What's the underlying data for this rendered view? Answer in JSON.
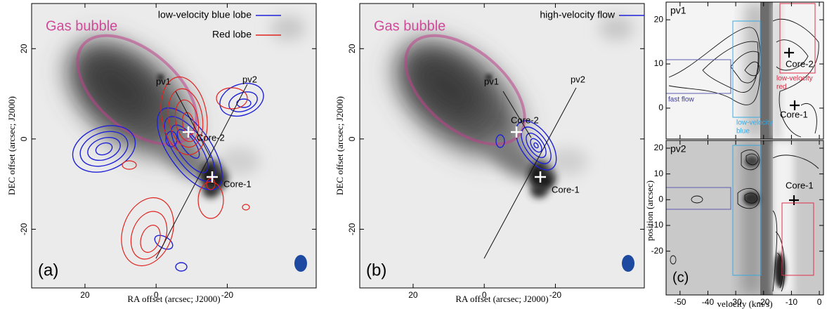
{
  "chart_data": [
    {
      "type": "image",
      "panel_label": "(a)",
      "annotations": [
        "Gas bubble",
        "pv1",
        "pv2",
        "Core-2",
        "Core-1"
      ],
      "series": [
        {
          "name": "low-velocity blue lobe",
          "color": "#1f22d6"
        },
        {
          "name": "Red lobe",
          "color": "#e0241f"
        }
      ],
      "xlabel": "RA offset (arcsec; J2000)",
      "ylabel": "DEC offset (arcsec; J2000)",
      "xlim": [
        35,
        -45
      ],
      "ylim": [
        -33,
        30
      ],
      "xticks": [
        20,
        0,
        -20
      ],
      "yticks": [
        -20,
        0,
        20
      ]
    },
    {
      "type": "image",
      "panel_label": "(b)",
      "annotations": [
        "Gas bubble",
        "pv1",
        "pv2",
        "Core-2",
        "Core-1"
      ],
      "series": [
        {
          "name": "high-velocity  flow",
          "color": "#1f22d6"
        }
      ],
      "xlabel": "RA offset (arcsec; J2000)",
      "ylabel": "DEC offset (arcsec; J2000)",
      "xlim": [
        35,
        -45
      ],
      "ylim": [
        -33,
        30
      ],
      "xticks": [
        20,
        0,
        -20
      ],
      "yticks": [
        -20,
        0,
        20
      ]
    },
    {
      "type": "pv",
      "title": "pv1",
      "annotations": [
        "Core-2",
        "low-velocity",
        "red",
        "fast flow",
        "low-velocity",
        "blue",
        "Core-1"
      ],
      "xlim": [
        -55,
        1.5
      ],
      "ylim": [
        -7,
        24
      ],
      "xticks": [
        -50,
        -40,
        -30,
        -20,
        -10,
        0
      ],
      "xtick_labels": false,
      "yticks": [
        0,
        10,
        20
      ]
    },
    {
      "type": "pv",
      "title": "pv2",
      "panel_label": "(c)",
      "annotations": [
        "Core-1"
      ],
      "xlabel": "velocity (km/s)",
      "ylabel": "position (arcsec)",
      "xlim": [
        -55,
        1.5
      ],
      "ylim": [
        -37,
        23
      ],
      "xticks": [
        -50,
        -40,
        -30,
        -20,
        -10,
        0
      ],
      "xtick_labels": true,
      "yticks": [
        -20,
        -10,
        0,
        10,
        20
      ]
    }
  ]
}
